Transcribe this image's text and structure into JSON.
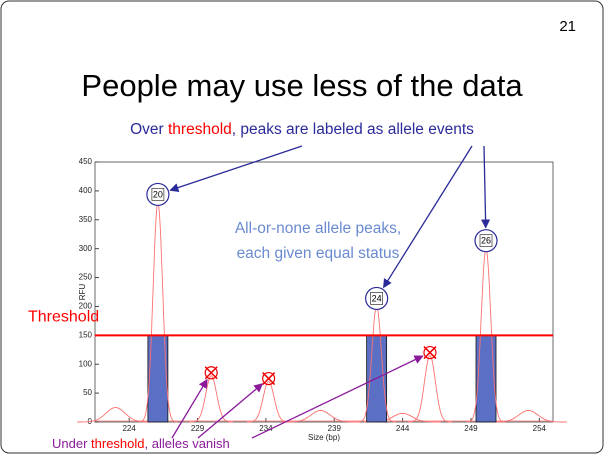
{
  "slide_number": "21",
  "title": "People may use less of the data",
  "chart_data": {
    "type": "line",
    "subtitle_parts": [
      "Over ",
      "threshold",
      ", peaks are labeled as allele events"
    ],
    "annotation": [
      "All-or-none allele peaks,",
      "each given equal status"
    ],
    "footnote_parts": [
      "Under ",
      "threshold",
      ", alleles vanish"
    ],
    "xlabel": "Size (bp)",
    "ylabel": "RFU",
    "xlim": [
      221.5,
      255
    ],
    "xticks": [
      224,
      229,
      234,
      239,
      244,
      249,
      254
    ],
    "ylim": [
      0,
      450
    ],
    "yticks": [
      0,
      50,
      100,
      150,
      200,
      250,
      300,
      350,
      400,
      450
    ],
    "threshold": {
      "label": "Threshold",
      "value": 150,
      "color": "#ff0000"
    },
    "color": "#ff7070",
    "bar_color": "#5b6fc4",
    "alleles": {
      "x": [
        226.1,
        242.1,
        250.1
      ],
      "values": [
        380,
        200,
        300
      ],
      "labels": [
        "20",
        "24",
        "26"
      ]
    },
    "vanished": {
      "x": [
        230.0,
        234.2,
        246.0
      ],
      "values": [
        80,
        70,
        115
      ]
    },
    "background": {
      "x": [
        223.0,
        238.0,
        244.0,
        253.2
      ],
      "values": [
        25,
        20,
        15,
        20
      ]
    }
  }
}
